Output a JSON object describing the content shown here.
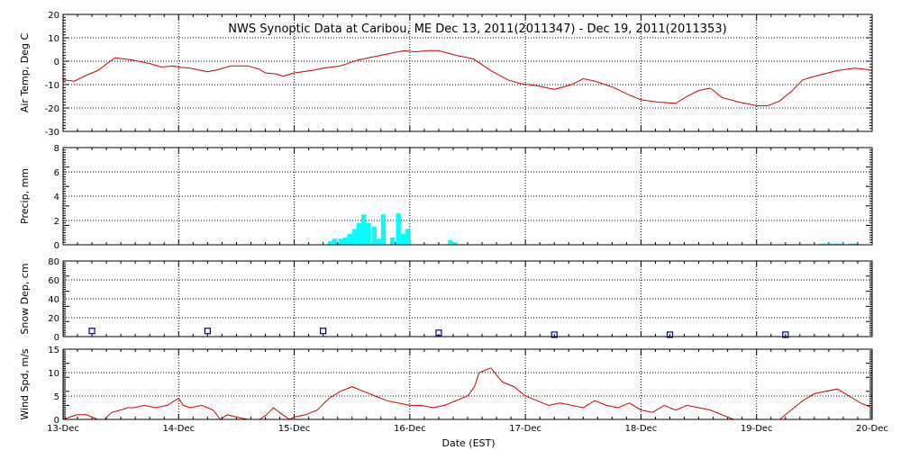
{
  "chart_data": {
    "type": "multi-panel time series",
    "title": "NWS Synoptic Data at Caribou, ME   Dec 13, 2011(2011347) - Dec 19, 2011(2011353)",
    "xlabel": "Date (EST)",
    "x_ticks": [
      "13-Dec",
      "14-Dec",
      "15-Dec",
      "16-Dec",
      "17-Dec",
      "18-Dec",
      "19-Dec",
      "20-Dec"
    ],
    "x_range_days": [
      0,
      7
    ],
    "grid": true,
    "panels": [
      {
        "id": "temp",
        "type": "line",
        "ylabel": "Air Temp, Deg C",
        "ylim": [
          -30,
          20
        ],
        "y_ticks": [
          20,
          10,
          0,
          -10,
          -20,
          -30
        ],
        "color": "#d40000",
        "x": [
          0,
          0.1,
          0.2,
          0.3,
          0.45,
          0.6,
          0.65,
          0.75,
          0.85,
          0.95,
          1.0,
          1.1,
          1.25,
          1.35,
          1.45,
          1.6,
          1.7,
          1.75,
          1.85,
          1.9,
          2.0,
          2.15,
          2.25,
          2.4,
          2.55,
          2.7,
          2.85,
          2.95,
          3.05,
          3.15,
          3.25,
          3.4,
          3.55,
          3.7,
          3.85,
          3.95,
          4.1,
          4.25,
          4.4,
          4.5,
          4.6,
          4.75,
          4.9,
          5.0,
          5.15,
          5.3,
          5.4,
          5.5,
          5.6,
          5.7,
          5.85,
          6.0,
          6.1,
          6.2,
          6.3,
          6.4,
          6.5,
          6.7,
          6.85,
          6.95,
          7.0
        ],
        "values": [
          -8,
          -8.5,
          -6,
          -4,
          1.5,
          0.5,
          0,
          -1,
          -2.5,
          -2,
          -2.5,
          -3,
          -4.5,
          -3.5,
          -2,
          -2,
          -3.5,
          -5,
          -5.5,
          -6.5,
          -5,
          -4,
          -3,
          -2,
          0.5,
          2,
          3.5,
          4.5,
          4,
          4.5,
          4.5,
          2.5,
          1,
          -4,
          -8,
          -9.5,
          -10.5,
          -12,
          -10,
          -7.5,
          -8.5,
          -11,
          -14.5,
          -16.5,
          -17.5,
          -18,
          -15,
          -12.5,
          -11.5,
          -15.5,
          -17.5,
          -19,
          -19,
          -17,
          -13,
          -8,
          -6.5,
          -4,
          -3,
          -3.5,
          -4
        ]
      },
      {
        "id": "precip",
        "type": "bar",
        "ylabel": "Precip, mm",
        "ylim": [
          0,
          8
        ],
        "y_ticks": [
          8,
          6,
          4,
          2,
          0
        ],
        "color": "#00ffff",
        "bar_width_days": 0.04167,
        "x": [
          2.29,
          2.33,
          2.38,
          2.42,
          2.46,
          2.5,
          2.54,
          2.58,
          2.62,
          2.67,
          2.71,
          2.75,
          2.83,
          2.88,
          2.92,
          2.96,
          3.33,
          3.37,
          6.54,
          6.58,
          6.62,
          6.67,
          6.71,
          6.79,
          6.83
        ],
        "values": [
          0.3,
          0.5,
          0.5,
          0.6,
          0.9,
          1.3,
          1.8,
          2.5,
          1.8,
          1.5,
          0.5,
          2.5,
          0.6,
          2.6,
          0.9,
          1.3,
          0.4,
          0.2,
          0.1,
          0.1,
          0.1,
          0.1,
          0.1,
          0.1,
          0.1
        ]
      },
      {
        "id": "snow",
        "type": "scatter",
        "ylabel": "Snow Dep, cm",
        "ylim": [
          0,
          80
        ],
        "y_ticks": [
          80,
          60,
          40,
          20,
          0
        ],
        "color": "#00008b",
        "x": [
          0.25,
          1.25,
          2.25,
          3.25,
          4.25,
          5.25,
          6.25
        ],
        "values": [
          6,
          6,
          6,
          4,
          2,
          2,
          2
        ]
      },
      {
        "id": "wind",
        "type": "line",
        "ylabel": "Wind Spd, m/s",
        "ylim": [
          0,
          15
        ],
        "y_ticks": [
          15,
          10,
          5,
          0
        ],
        "color": "#d40000",
        "x": [
          0,
          0.12,
          0.2,
          0.3,
          0.36,
          0.42,
          0.5,
          0.56,
          0.62,
          0.7,
          0.8,
          0.9,
          1.0,
          1.04,
          1.1,
          1.2,
          1.3,
          1.36,
          1.42,
          1.5,
          1.6,
          1.7,
          1.76,
          1.82,
          1.9,
          1.96,
          2.0,
          2.1,
          2.2,
          2.3,
          2.4,
          2.5,
          2.6,
          2.7,
          2.8,
          2.9,
          3.0,
          3.1,
          3.2,
          3.3,
          3.4,
          3.5,
          3.56,
          3.6,
          3.7,
          3.8,
          3.9,
          4.0,
          4.1,
          4.2,
          4.3,
          4.4,
          4.5,
          4.6,
          4.7,
          4.8,
          4.9,
          5.0,
          5.1,
          5.2,
          5.3,
          5.4,
          5.5,
          5.6,
          5.7,
          5.8,
          5.9,
          6.0,
          6.1,
          6.2,
          6.3,
          6.4,
          6.5,
          6.6,
          6.7,
          6.8,
          6.9,
          7.0
        ],
        "values": [
          0,
          1,
          1,
          0,
          0,
          1.5,
          2,
          2.5,
          2.5,
          3,
          2.5,
          3,
          4.5,
          3,
          2.5,
          3,
          2,
          0,
          1,
          0.5,
          0,
          0,
          1,
          2.5,
          1,
          0,
          0.5,
          1,
          2,
          4.5,
          6,
          7,
          6,
          5,
          4,
          3.5,
          3,
          3,
          2.5,
          3,
          4,
          5,
          7,
          10,
          11,
          8,
          7,
          5,
          4,
          3,
          3.5,
          3,
          2.5,
          4,
          3,
          2.5,
          3.5,
          2,
          1.5,
          3,
          2,
          3,
          2.5,
          2,
          1,
          0,
          0,
          0,
          0,
          0,
          2,
          4,
          5.5,
          6,
          6.5,
          5,
          3.5,
          2.5
        ]
      }
    ]
  }
}
